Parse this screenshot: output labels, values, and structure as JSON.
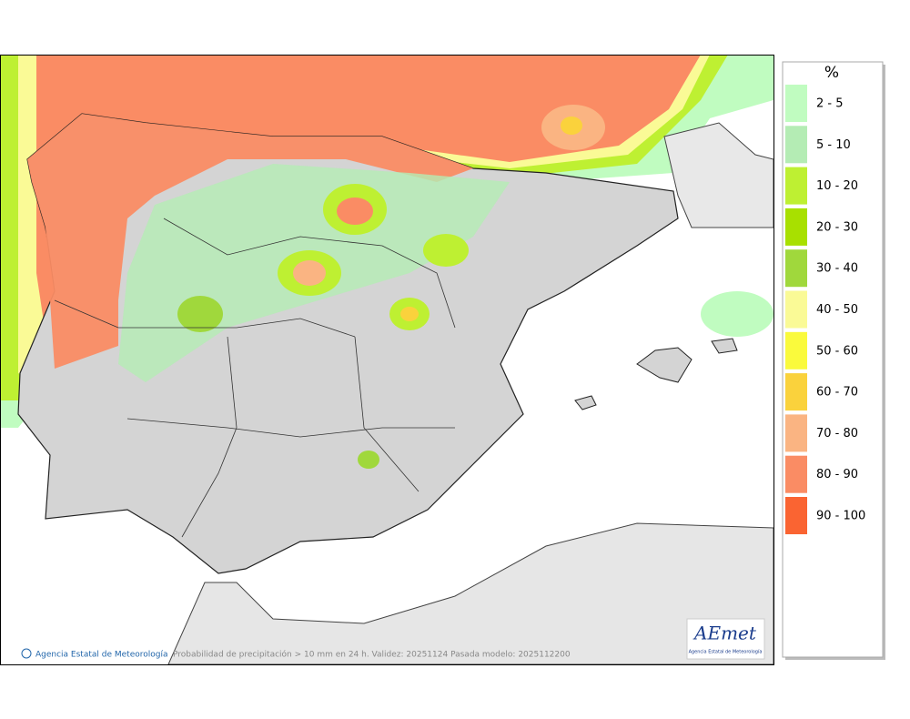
{
  "map": {
    "legend": {
      "title": "%",
      "items": [
        {
          "label": "2 - 5",
          "color": "#c0fcc0"
        },
        {
          "label": "5 - 10",
          "color": "#b4ecb4"
        },
        {
          "label": "10 - 20",
          "color": "#bef032"
        },
        {
          "label": "20 - 30",
          "color": "#a8e000"
        },
        {
          "label": "30 - 40",
          "color": "#a0d83c"
        },
        {
          "label": "40 - 50",
          "color": "#fafa96"
        },
        {
          "label": "50 - 60",
          "color": "#fafa3c"
        },
        {
          "label": "60 - 70",
          "color": "#fad23c"
        },
        {
          "label": "70 - 80",
          "color": "#fab482"
        },
        {
          "label": "80 - 90",
          "color": "#fa8c64"
        },
        {
          "label": "90 - 100",
          "color": "#fa6432"
        }
      ]
    },
    "footer": {
      "credit": "Agencia Estatal de Meteorología",
      "caption": "Probabilidad de precipitación > 10 mm en 24 h. Validez: 20251124 Pasada modelo: 2025112200"
    },
    "logo": {
      "name": "AEmet",
      "subtitle": "Agencia Estatal de Meteorología"
    }
  }
}
